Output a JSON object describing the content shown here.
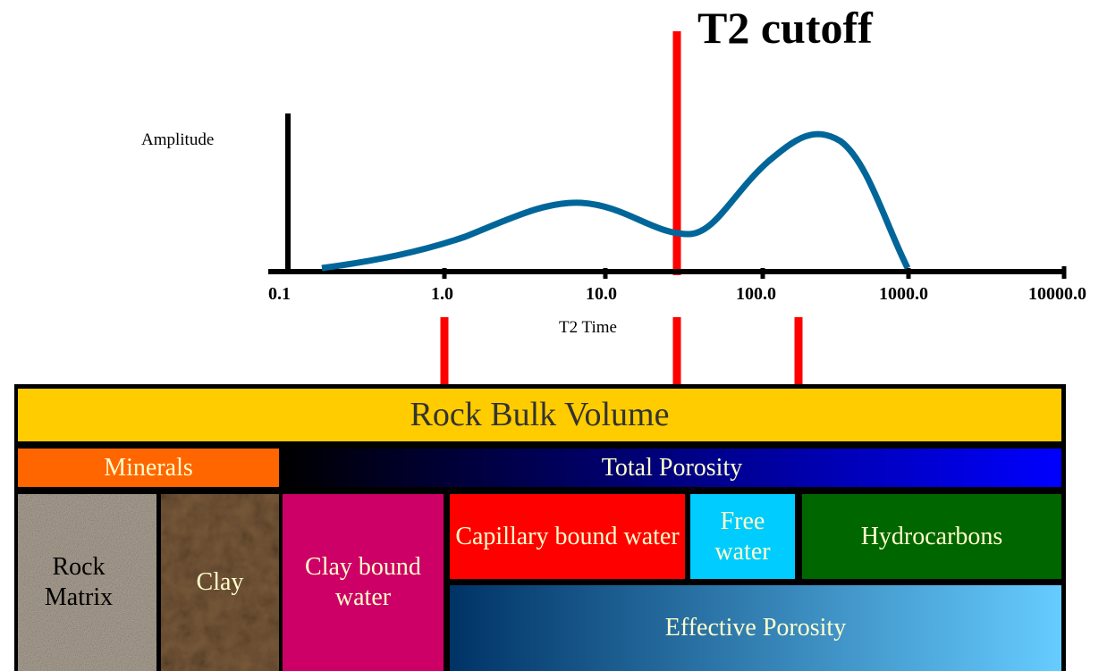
{
  "title": "T2 cutoff",
  "axis": {
    "y_label": "Amplitude",
    "x_label": "T2 Time",
    "tick_labels": [
      "0.1",
      "1.0",
      "10.0",
      "100.0",
      "1000.0",
      "10000.0"
    ]
  },
  "boxes": {
    "rock_bulk_volume": "Rock Bulk Volume",
    "minerals": "Minerals",
    "total_porosity": "Total Porosity",
    "rock_matrix": "Rock Matrix",
    "clay": "Clay",
    "clay_bound_water": "Clay bound water",
    "capillary_bound_water": "Capillary bound water",
    "free_water": "Free water",
    "hydrocarbons": "Hydrocarbons",
    "effective_porosity": "Effective Porosity"
  }
}
